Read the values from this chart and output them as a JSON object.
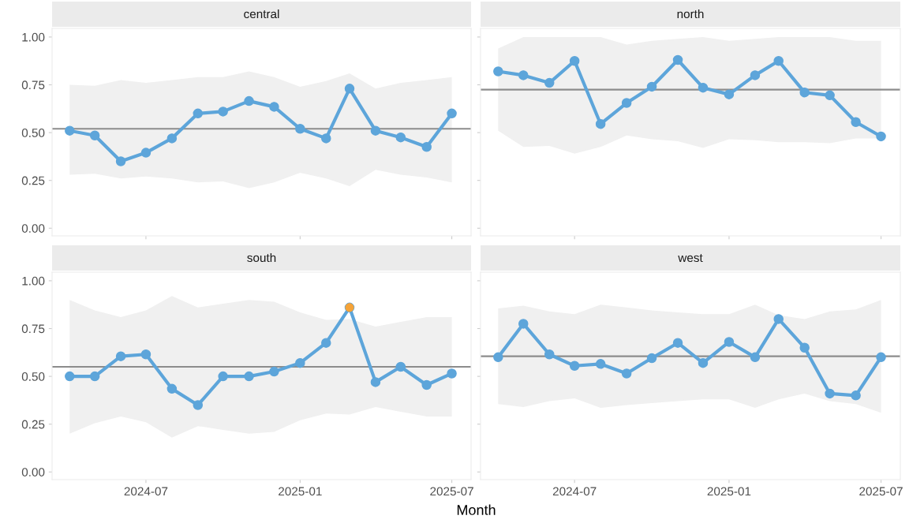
{
  "chart_data": [
    {
      "type": "line",
      "title": "central",
      "x": [
        "2024-04",
        "2024-05",
        "2024-06",
        "2024-07",
        "2024-08",
        "2024-09",
        "2024-10",
        "2024-11",
        "2024-12",
        "2025-01",
        "2025-02",
        "2025-03",
        "2025-04",
        "2025-05",
        "2025-06",
        "2025-07"
      ],
      "xlim": [
        "2024-03-11",
        "2025-07-24"
      ],
      "xticks": [
        "2024-07",
        "2025-01",
        "2025-07"
      ],
      "ylim": [
        -0.04,
        1.045
      ],
      "yticks": [
        {
          "value": 0,
          "label": "0.00"
        },
        {
          "value": 0.25,
          "label": "0.25"
        },
        {
          "value": 0.5,
          "label": "0.50"
        },
        {
          "value": 0.75,
          "label": "0.75"
        },
        {
          "value": 1,
          "label": "1.00"
        }
      ],
      "tick_labels": "y",
      "marker": "circle",
      "grid": false,
      "legend": false,
      "series": [
        {
          "color": "#5da5da",
          "values": [
            0.51,
            0.485,
            0.35,
            0.395,
            0.47,
            0.6,
            0.61,
            0.665,
            0.635,
            0.52,
            0.47,
            0.73,
            0.51,
            0.475,
            0.425,
            0.6
          ],
          "upper": [
            0.75,
            0.745,
            0.775,
            0.76,
            0.775,
            0.79,
            0.79,
            0.82,
            0.79,
            0.74,
            0.77,
            0.81,
            0.73,
            0.76,
            0.775,
            0.79
          ],
          "lower": [
            0.28,
            0.285,
            0.26,
            0.27,
            0.26,
            0.24,
            0.245,
            0.21,
            0.24,
            0.29,
            0.26,
            0.22,
            0.305,
            0.28,
            0.265,
            0.24
          ]
        }
      ],
      "ref_lines": [
        {
          "axis": "y",
          "value": 0.52,
          "color": "#8c8c8c"
        }
      ]
    },
    {
      "type": "line",
      "title": "north",
      "x": [
        "2024-04",
        "2024-05",
        "2024-06",
        "2024-07",
        "2024-08",
        "2024-09",
        "2024-10",
        "2024-11",
        "2024-12",
        "2025-01",
        "2025-02",
        "2025-03",
        "2025-04",
        "2025-05",
        "2025-06",
        "2025-07"
      ],
      "xlim": [
        "2024-03-11",
        "2025-07-24"
      ],
      "xticks": [
        "2024-07",
        "2025-01",
        "2025-07"
      ],
      "ylim": [
        -0.04,
        1.045
      ],
      "yticks": [
        0,
        0.25,
        0.5,
        0.75,
        1
      ],
      "tick_labels": false,
      "marker": "circle",
      "grid": false,
      "legend": false,
      "series": [
        {
          "color": "#5da5da",
          "values": [
            0.82,
            0.8,
            0.76,
            0.875,
            0.545,
            0.655,
            0.74,
            0.88,
            0.735,
            0.7,
            0.8,
            0.875,
            0.71,
            0.695,
            0.555,
            0.48
          ],
          "upper": [
            0.94,
            1.0,
            1.0,
            1.0,
            1.0,
            0.96,
            0.98,
            0.99,
            1.0,
            0.98,
            0.99,
            1.0,
            1.0,
            1.0,
            0.98,
            0.98
          ],
          "lower": [
            0.51,
            0.425,
            0.43,
            0.39,
            0.425,
            0.485,
            0.465,
            0.455,
            0.42,
            0.465,
            0.46,
            0.45,
            0.45,
            0.445,
            0.47,
            0.47
          ]
        }
      ],
      "ref_lines": [
        {
          "axis": "y",
          "value": 0.725,
          "color": "#8c8c8c"
        }
      ]
    },
    {
      "type": "line",
      "title": "south",
      "xlabel": "Month",
      "x": [
        "2024-04",
        "2024-05",
        "2024-06",
        "2024-07",
        "2024-08",
        "2024-09",
        "2024-10",
        "2024-11",
        "2024-12",
        "2025-01",
        "2025-02",
        "2025-03",
        "2025-04",
        "2025-05",
        "2025-06",
        "2025-07"
      ],
      "xlim": [
        "2024-03-11",
        "2025-07-24"
      ],
      "xticks": [
        "2024-07",
        "2025-01",
        "2025-07"
      ],
      "ylim": [
        -0.04,
        1.045
      ],
      "yticks": [
        {
          "value": 0,
          "label": "0.00"
        },
        {
          "value": 0.25,
          "label": "0.25"
        },
        {
          "value": 0.5,
          "label": "0.50"
        },
        {
          "value": 0.75,
          "label": "0.75"
        },
        {
          "value": 1,
          "label": "1.00"
        }
      ],
      "marker": "circle",
      "grid": false,
      "legend": false,
      "series": [
        {
          "color": "#5da5da",
          "values": [
            0.5,
            0.5,
            0.605,
            0.615,
            0.435,
            0.35,
            0.5,
            0.5,
            0.525,
            0.57,
            0.675,
            0.86,
            0.47,
            0.55,
            0.455,
            0.515
          ],
          "upper": [
            0.9,
            0.845,
            0.81,
            0.845,
            0.92,
            0.86,
            0.88,
            0.9,
            0.89,
            0.835,
            0.795,
            0.8,
            0.76,
            0.785,
            0.81,
            0.81
          ],
          "lower": [
            0.2,
            0.255,
            0.29,
            0.26,
            0.18,
            0.24,
            0.22,
            0.2,
            0.21,
            0.27,
            0.305,
            0.3,
            0.34,
            0.315,
            0.29,
            0.29
          ]
        },
        {
          "type": "scatter",
          "color": "#f5a338",
          "x": [
            "2025-03"
          ],
          "values": [
            0.86
          ]
        }
      ],
      "ref_lines": [
        {
          "axis": "y",
          "value": 0.55,
          "color": "#8c8c8c"
        }
      ]
    },
    {
      "type": "line",
      "title": "west",
      "x": [
        "2024-04",
        "2024-05",
        "2024-06",
        "2024-07",
        "2024-08",
        "2024-09",
        "2024-10",
        "2024-11",
        "2024-12",
        "2025-01",
        "2025-02",
        "2025-03",
        "2025-04",
        "2025-05",
        "2025-06",
        "2025-07"
      ],
      "xlim": [
        "2024-03-11",
        "2025-07-24"
      ],
      "xticks": [
        "2024-07",
        "2025-01",
        "2025-07"
      ],
      "ylim": [
        -0.04,
        1.045
      ],
      "yticks": [
        0,
        0.25,
        0.5,
        0.75,
        1
      ],
      "tick_labels": "x",
      "marker": "circle",
      "grid": false,
      "legend": false,
      "series": [
        {
          "color": "#5da5da",
          "values": [
            0.6,
            0.775,
            0.615,
            0.555,
            0.565,
            0.515,
            0.595,
            0.675,
            0.57,
            0.68,
            0.6,
            0.8,
            0.65,
            0.41,
            0.4,
            0.6
          ],
          "upper": [
            0.855,
            0.87,
            0.84,
            0.825,
            0.875,
            0.86,
            0.845,
            0.835,
            0.825,
            0.825,
            0.875,
            0.82,
            0.8,
            0.84,
            0.85,
            0.9
          ],
          "lower": [
            0.355,
            0.34,
            0.37,
            0.385,
            0.335,
            0.35,
            0.36,
            0.37,
            0.38,
            0.38,
            0.335,
            0.38,
            0.41,
            0.37,
            0.355,
            0.31
          ]
        }
      ],
      "ref_lines": [
        {
          "axis": "y",
          "value": 0.605,
          "color": "#8c8c8c"
        }
      ]
    }
  ]
}
